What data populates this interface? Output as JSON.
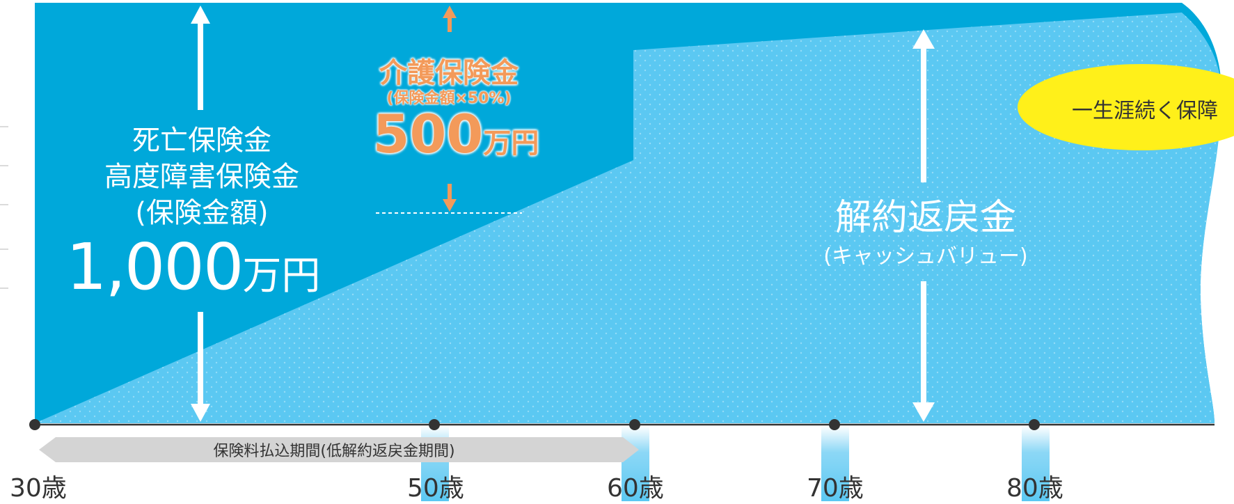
{
  "death_benefit": {
    "line1": "死亡保険金",
    "line2": "高度障害保険金",
    "line3": "(保険金額)",
    "amount": "1,000",
    "unit": "万円"
  },
  "care_benefit": {
    "label": "介護保険金",
    "sub": "(保険金額×50%)",
    "amount": "500",
    "unit": "万円"
  },
  "cash_value": {
    "label": "解約返戻金",
    "sub": "(キャッシュバリュー)"
  },
  "badge": "一生涯続く保障",
  "payment_period": "保険料払込期間(低解約返戻金期間)",
  "ages": [
    "30歳",
    "50歳",
    "60歳",
    "70歳",
    "80歳"
  ],
  "colors": {
    "dark_blue": "#00a8da",
    "light_blue": "#5bc8f2",
    "orange": "#f39a5a",
    "yellow": "#fff01a",
    "period_bar": "#d4d4d4",
    "axis": "#333333"
  }
}
